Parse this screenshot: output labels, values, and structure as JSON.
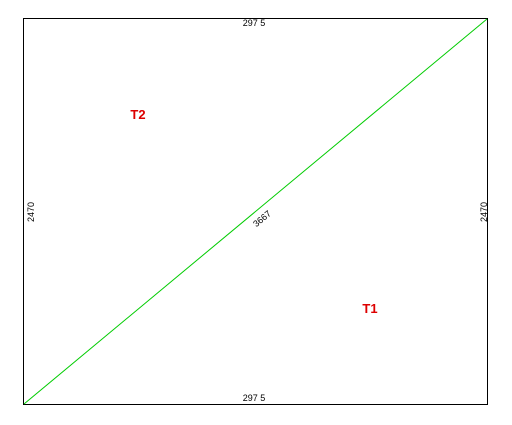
{
  "panel": {
    "dimensions": {
      "top": "297 5",
      "bottom": "297 5",
      "left": "2470",
      "right": "2470",
      "diagonal": "3667"
    },
    "regions": [
      {
        "label": "T2"
      },
      {
        "label": "T1"
      }
    ]
  },
  "colors": {
    "outline": "#000000",
    "diagonal": "#00cc00",
    "region_label": "#dd0000"
  }
}
